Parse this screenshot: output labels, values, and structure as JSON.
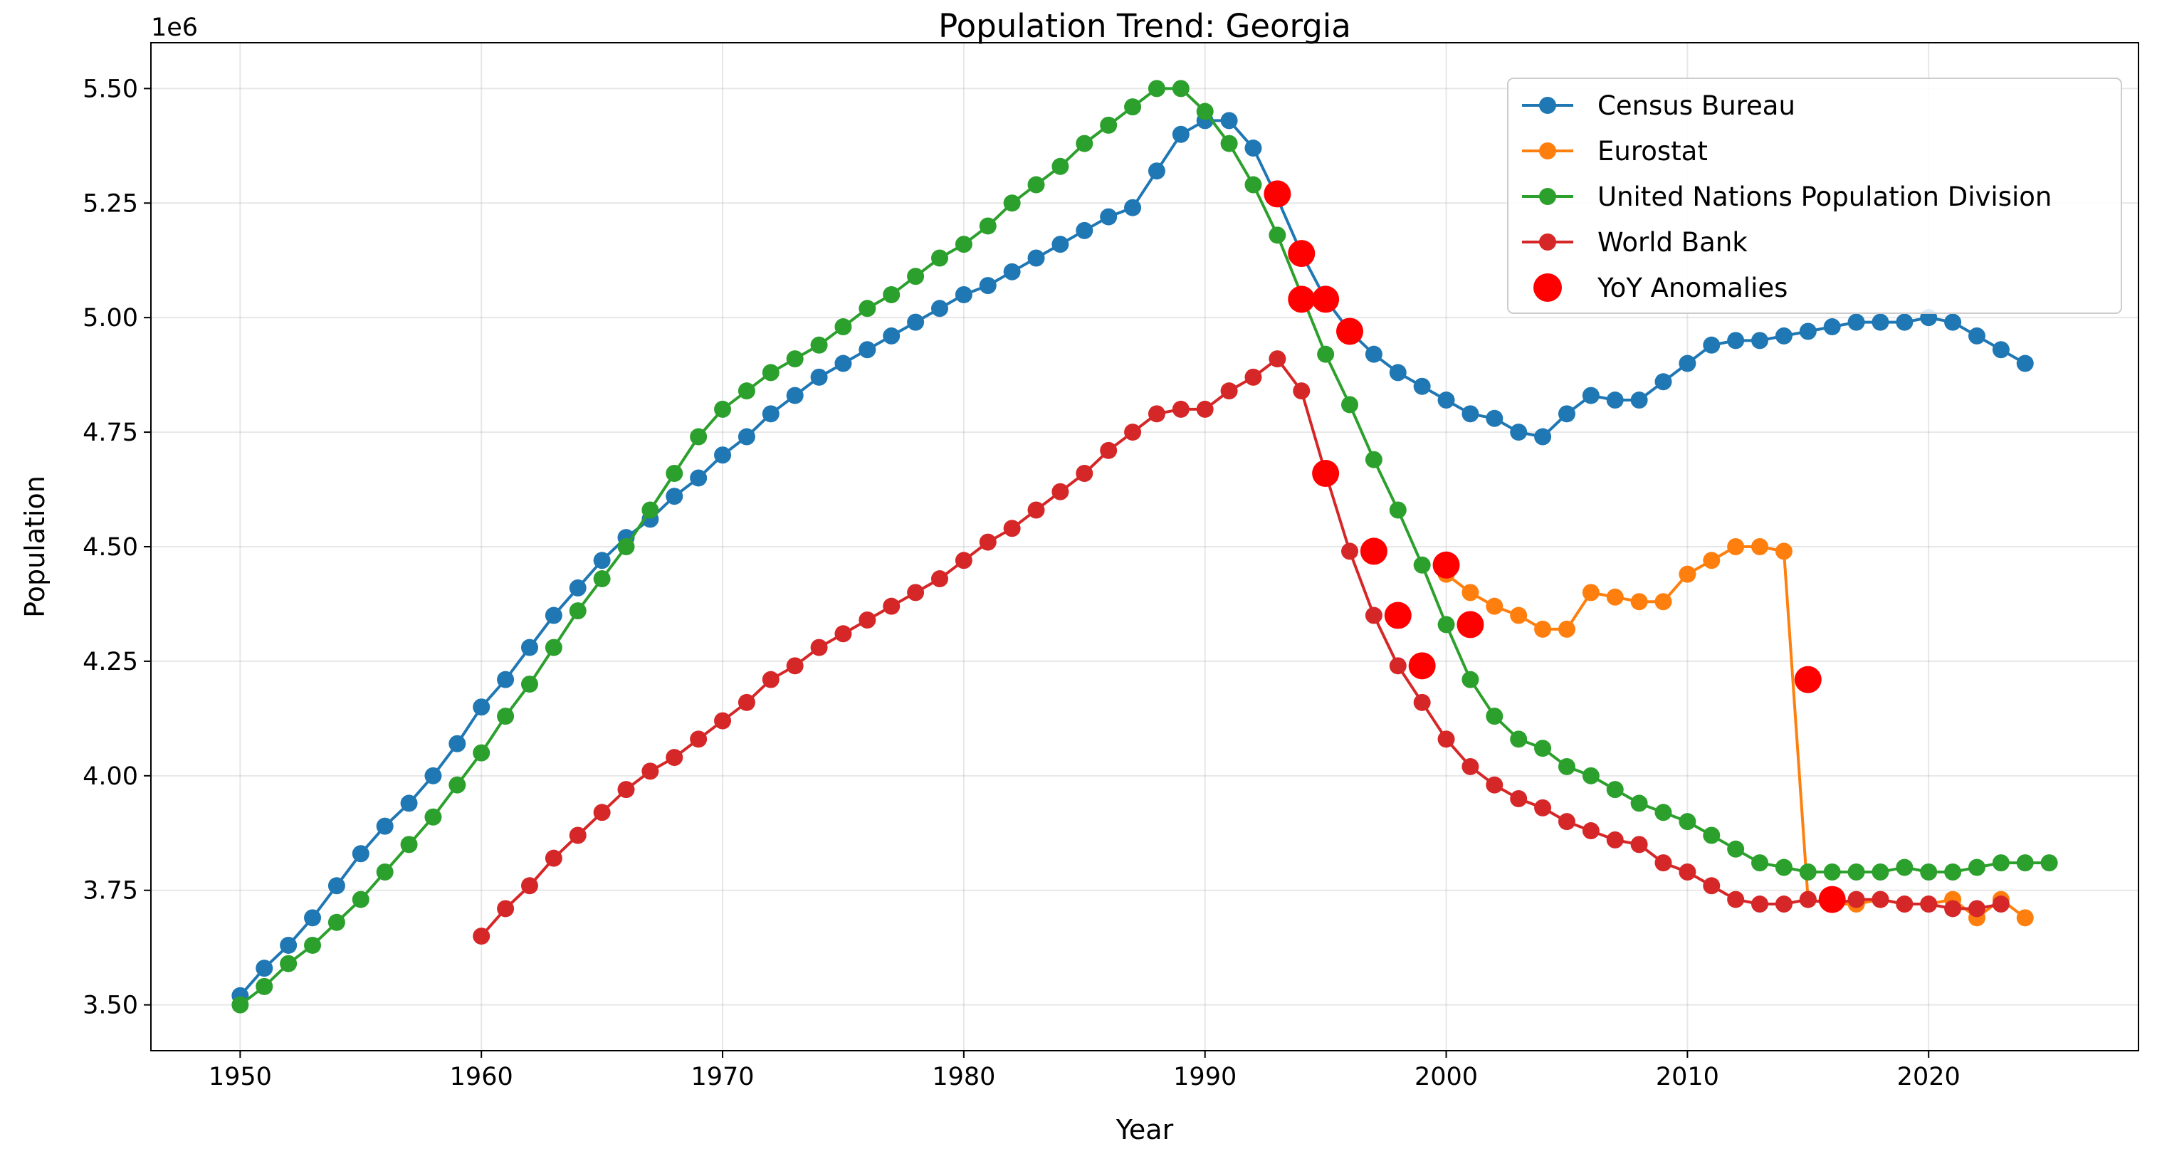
{
  "chart_data": {
    "type": "line",
    "title": "Population Trend: Georgia",
    "xlabel": "Year",
    "ylabel": "Population",
    "offset_text": "1e6",
    "xlim": [
      1946.3,
      2028.7
    ],
    "ylim": [
      3.4,
      5.6
    ],
    "xticks": [
      1950,
      1960,
      1970,
      1980,
      1990,
      2000,
      2010,
      2020
    ],
    "yticks": [
      3.5,
      3.75,
      4.0,
      4.25,
      4.5,
      4.75,
      5.0,
      5.25,
      5.5
    ],
    "ytick_labels": [
      "3.50",
      "3.75",
      "4.00",
      "4.25",
      "4.50",
      "4.75",
      "5.00",
      "5.25",
      "5.50"
    ],
    "grid": true,
    "legend_position": "top-right",
    "series": [
      {
        "name": "Census Bureau",
        "color": "#1f77b4",
        "x": [
          1950,
          1951,
          1952,
          1953,
          1954,
          1955,
          1956,
          1957,
          1958,
          1959,
          1960,
          1961,
          1962,
          1963,
          1964,
          1965,
          1966,
          1967,
          1968,
          1969,
          1970,
          1971,
          1972,
          1973,
          1974,
          1975,
          1976,
          1977,
          1978,
          1979,
          1980,
          1981,
          1982,
          1983,
          1984,
          1985,
          1986,
          1987,
          1988,
          1989,
          1990,
          1991,
          1992,
          1993,
          1994,
          1995,
          1996,
          1997,
          1998,
          1999,
          2000,
          2001,
          2002,
          2003,
          2004,
          2005,
          2006,
          2007,
          2008,
          2009,
          2010,
          2011,
          2012,
          2013,
          2014,
          2015,
          2016,
          2017,
          2018,
          2019,
          2020,
          2021,
          2022,
          2023,
          2024
        ],
        "y": [
          3.52,
          3.58,
          3.63,
          3.69,
          3.76,
          3.83,
          3.89,
          3.94,
          4.0,
          4.07,
          4.15,
          4.21,
          4.28,
          4.35,
          4.41,
          4.47,
          4.52,
          4.56,
          4.61,
          4.65,
          4.7,
          4.74,
          4.79,
          4.83,
          4.87,
          4.9,
          4.93,
          4.96,
          4.99,
          5.02,
          5.05,
          5.07,
          5.1,
          5.13,
          5.16,
          5.19,
          5.22,
          5.24,
          5.32,
          5.4,
          5.43,
          5.43,
          5.37,
          5.26,
          5.14,
          5.04,
          4.97,
          4.92,
          4.88,
          4.85,
          4.82,
          4.79,
          4.78,
          4.75,
          4.74,
          4.79,
          4.83,
          4.82,
          4.82,
          4.86,
          4.9,
          4.94,
          4.95,
          4.95,
          4.96,
          4.97,
          4.98,
          4.99,
          4.99,
          4.99,
          5.0,
          4.99,
          4.96,
          4.93,
          4.9
        ]
      },
      {
        "name": "Eurostat",
        "color": "#ff7f0e",
        "x": [
          2000,
          2001,
          2002,
          2003,
          2004,
          2005,
          2006,
          2007,
          2008,
          2009,
          2010,
          2011,
          2012,
          2013,
          2014,
          2015,
          2016,
          2017,
          2018,
          2019,
          2020,
          2021,
          2022,
          2023,
          2024
        ],
        "y": [
          4.44,
          4.4,
          4.37,
          4.35,
          4.32,
          4.32,
          4.4,
          4.39,
          4.38,
          4.38,
          4.44,
          4.47,
          4.5,
          4.5,
          4.49,
          3.73,
          3.72,
          3.72,
          3.73,
          3.72,
          3.72,
          3.73,
          3.69,
          3.73,
          3.69
        ]
      },
      {
        "name": "United Nations Population Division",
        "color": "#2ca02c",
        "x": [
          1950,
          1951,
          1952,
          1953,
          1954,
          1955,
          1956,
          1957,
          1958,
          1959,
          1960,
          1961,
          1962,
          1963,
          1964,
          1965,
          1966,
          1967,
          1968,
          1969,
          1970,
          1971,
          1972,
          1973,
          1974,
          1975,
          1976,
          1977,
          1978,
          1979,
          1980,
          1981,
          1982,
          1983,
          1984,
          1985,
          1986,
          1987,
          1988,
          1989,
          1990,
          1991,
          1992,
          1993,
          1994,
          1995,
          1996,
          1997,
          1998,
          1999,
          2000,
          2001,
          2002,
          2003,
          2004,
          2005,
          2006,
          2007,
          2008,
          2009,
          2010,
          2011,
          2012,
          2013,
          2014,
          2015,
          2016,
          2017,
          2018,
          2019,
          2020,
          2021,
          2022,
          2023,
          2024,
          2025
        ],
        "y": [
          3.5,
          3.54,
          3.59,
          3.63,
          3.68,
          3.73,
          3.79,
          3.85,
          3.91,
          3.98,
          4.05,
          4.13,
          4.2,
          4.28,
          4.36,
          4.43,
          4.5,
          4.58,
          4.66,
          4.74,
          4.8,
          4.84,
          4.88,
          4.91,
          4.94,
          4.98,
          5.02,
          5.05,
          5.09,
          5.13,
          5.16,
          5.2,
          5.25,
          5.29,
          5.33,
          5.38,
          5.42,
          5.46,
          5.5,
          5.5,
          5.45,
          5.38,
          5.29,
          5.18,
          5.05,
          4.92,
          4.81,
          4.69,
          4.58,
          4.46,
          4.33,
          4.21,
          4.13,
          4.08,
          4.06,
          4.02,
          4.0,
          3.97,
          3.94,
          3.92,
          3.9,
          3.87,
          3.84,
          3.81,
          3.8,
          3.79,
          3.79,
          3.79,
          3.79,
          3.8,
          3.79,
          3.79,
          3.8,
          3.81,
          3.81,
          3.81
        ]
      },
      {
        "name": "World Bank",
        "color": "#d62728",
        "x": [
          1960,
          1961,
          1962,
          1963,
          1964,
          1965,
          1966,
          1967,
          1968,
          1969,
          1970,
          1971,
          1972,
          1973,
          1974,
          1975,
          1976,
          1977,
          1978,
          1979,
          1980,
          1981,
          1982,
          1983,
          1984,
          1985,
          1986,
          1987,
          1988,
          1989,
          1990,
          1991,
          1992,
          1993,
          1994,
          1995,
          1996,
          1997,
          1998,
          1999,
          2000,
          2001,
          2002,
          2003,
          2004,
          2005,
          2006,
          2007,
          2008,
          2009,
          2010,
          2011,
          2012,
          2013,
          2014,
          2015,
          2016,
          2017,
          2018,
          2019,
          2020,
          2021,
          2022,
          2023
        ],
        "y": [
          3.65,
          3.71,
          3.76,
          3.82,
          3.87,
          3.92,
          3.97,
          4.01,
          4.04,
          4.08,
          4.12,
          4.16,
          4.21,
          4.24,
          4.28,
          4.31,
          4.34,
          4.37,
          4.4,
          4.43,
          4.47,
          4.51,
          4.54,
          4.58,
          4.62,
          4.66,
          4.71,
          4.75,
          4.79,
          4.8,
          4.8,
          4.84,
          4.87,
          4.91,
          4.84,
          4.66,
          4.49,
          4.35,
          4.24,
          4.16,
          4.08,
          4.02,
          3.98,
          3.95,
          3.93,
          3.9,
          3.88,
          3.86,
          3.85,
          3.81,
          3.79,
          3.76,
          3.73,
          3.72,
          3.72,
          3.73,
          3.72,
          3.73,
          3.73,
          3.72,
          3.72,
          3.71,
          3.71,
          3.72
        ]
      },
      {
        "name": "YoY Anomalies",
        "color": "#ff0000",
        "kind": "scatter",
        "x": [
          1993,
          1994,
          1994,
          1995,
          1996,
          1995,
          1997,
          1998,
          1999,
          2000,
          2001,
          2015,
          2016
        ],
        "y": [
          5.27,
          5.14,
          5.04,
          5.04,
          4.97,
          4.66,
          4.49,
          4.35,
          4.24,
          4.46,
          4.33,
          4.21,
          3.73
        ]
      }
    ]
  }
}
